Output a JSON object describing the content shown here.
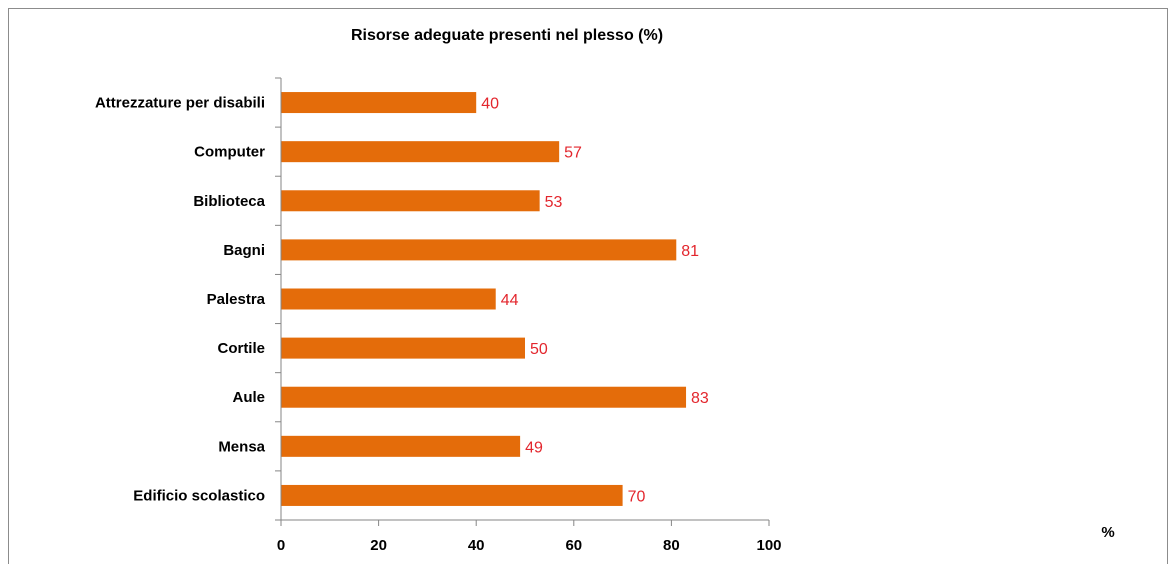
{
  "chart_data": {
    "type": "bar",
    "orientation": "horizontal",
    "title": "Risorse adeguate presenti nel plesso  (%)",
    "categories": [
      "Attrezzature per disabili",
      "Computer",
      "Biblioteca",
      "Bagni",
      "Palestra",
      "Cortile",
      "Aule",
      "Mensa",
      "Edificio scolastico"
    ],
    "values": [
      40,
      57,
      53,
      81,
      44,
      50,
      83,
      49,
      70
    ],
    "xlabel": "%",
    "ylabel": "",
    "xlim": [
      0,
      100
    ],
    "x_ticks": [
      "0",
      "20",
      "40",
      "60",
      "80",
      "100"
    ],
    "grid": false,
    "legend": "none",
    "colors": {
      "bar": "#E46C0A",
      "data_label": "#E3262D",
      "axis": "#868686"
    }
  }
}
